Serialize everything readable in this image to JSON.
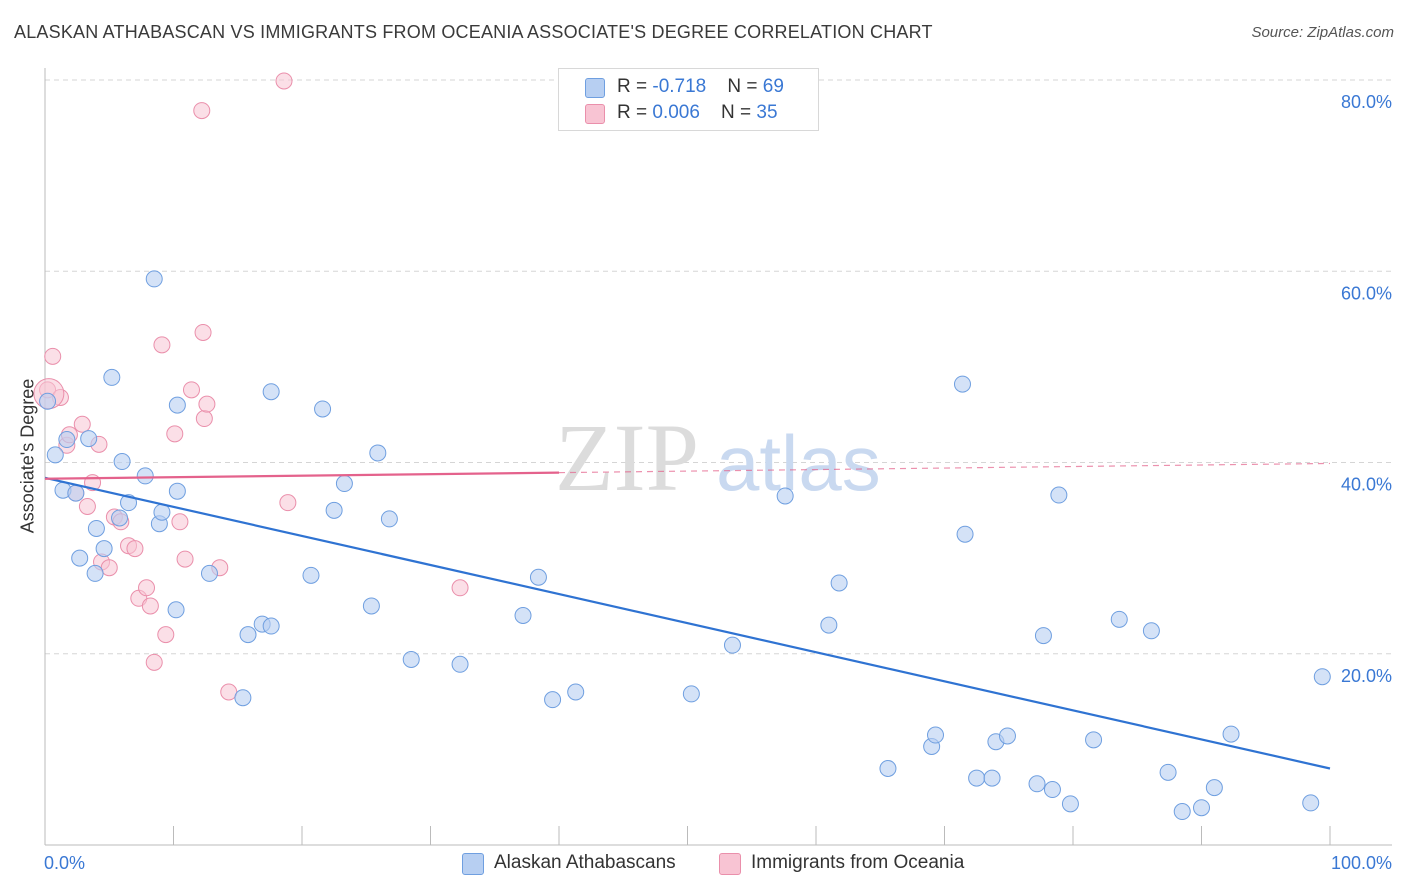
{
  "header": {
    "title": "ALASKAN ATHABASCAN VS IMMIGRANTS FROM OCEANIA ASSOCIATE'S DEGREE CORRELATION CHART",
    "source": "Source: ZipAtlas.com"
  },
  "watermark": {
    "zip": "ZIP",
    "atlas": "atlas"
  },
  "legend_top": {
    "rows": [
      {
        "r_label": "R = ",
        "r_value": "-0.718",
        "n_label": "N = ",
        "n_value": "69"
      },
      {
        "r_label": "R = ",
        "r_value": "0.006",
        "n_label": "N = ",
        "n_value": "35"
      }
    ]
  },
  "legend_bottom": {
    "series0": "Alaskan Athabascans",
    "series1": "Immigrants from Oceania"
  },
  "colors": {
    "blue_fill": "#b7cff2",
    "blue_stroke": "#6f9fe0",
    "blue_line": "#2f73d2",
    "pink_fill": "#f8c4d3",
    "pink_stroke": "#ea8fab",
    "pink_line": "#e4628c",
    "tick_text": "#3a78d4",
    "grid": "#d5d5d5"
  },
  "chart_data": {
    "type": "scatter",
    "title": "ALASKAN ATHABASCAN VS IMMIGRANTS FROM OCEANIA ASSOCIATE'S DEGREE CORRELATION CHART",
    "xlabel": "",
    "ylabel": "Associate's Degree",
    "xlim": [
      0,
      100
    ],
    "ylim": [
      0,
      80
    ],
    "x_tick_labels": [
      "0.0%",
      "100.0%"
    ],
    "y_ticks": [
      20,
      40,
      60,
      80
    ],
    "y_tick_labels": [
      "20.0%",
      "40.0%",
      "60.0%",
      "80.0%"
    ],
    "grid": true,
    "legend_position": "top-center",
    "series": [
      {
        "name": "Alaskan Athabascans",
        "R": -0.718,
        "N": 69,
        "trend": {
          "x": [
            0,
            100
          ],
          "y": [
            38.4,
            8.0
          ],
          "style": "solid"
        },
        "points": [
          [
            0.2,
            46.4
          ],
          [
            0.8,
            40.8
          ],
          [
            1.4,
            37.1
          ],
          [
            1.7,
            42.4
          ],
          [
            2.4,
            36.8
          ],
          [
            2.7,
            30.0
          ],
          [
            3.4,
            42.5
          ],
          [
            3.9,
            28.4
          ],
          [
            4.0,
            33.1
          ],
          [
            4.6,
            31.0
          ],
          [
            5.2,
            48.9
          ],
          [
            5.8,
            34.2
          ],
          [
            6.0,
            40.1
          ],
          [
            6.5,
            35.8
          ],
          [
            7.8,
            38.6
          ],
          [
            8.5,
            59.2
          ],
          [
            8.9,
            33.6
          ],
          [
            9.1,
            34.8
          ],
          [
            10.2,
            24.6
          ],
          [
            10.3,
            37.0
          ],
          [
            10.3,
            46.0
          ],
          [
            12.8,
            28.4
          ],
          [
            15.4,
            15.4
          ],
          [
            15.8,
            22.0
          ],
          [
            16.9,
            23.1
          ],
          [
            17.6,
            22.9
          ],
          [
            17.6,
            47.4
          ],
          [
            20.7,
            28.2
          ],
          [
            21.6,
            45.6
          ],
          [
            22.5,
            35.0
          ],
          [
            23.3,
            37.8
          ],
          [
            25.4,
            25.0
          ],
          [
            25.9,
            41.0
          ],
          [
            26.8,
            34.1
          ],
          [
            28.5,
            19.4
          ],
          [
            32.3,
            18.9
          ],
          [
            37.2,
            24.0
          ],
          [
            38.4,
            28.0
          ],
          [
            39.5,
            15.2
          ],
          [
            41.3,
            16.0
          ],
          [
            50.3,
            15.8
          ],
          [
            53.5,
            20.9
          ],
          [
            57.6,
            36.5
          ],
          [
            61.0,
            23.0
          ],
          [
            61.8,
            27.4
          ],
          [
            65.6,
            8.0
          ],
          [
            69.0,
            10.3
          ],
          [
            69.3,
            11.5
          ],
          [
            71.4,
            48.2
          ],
          [
            71.6,
            32.5
          ],
          [
            72.5,
            7.0
          ],
          [
            73.7,
            7.0
          ],
          [
            74.0,
            10.8
          ],
          [
            74.9,
            11.4
          ],
          [
            77.2,
            6.4
          ],
          [
            77.7,
            21.9
          ],
          [
            78.4,
            5.8
          ],
          [
            78.9,
            36.6
          ],
          [
            79.8,
            4.3
          ],
          [
            81.6,
            11.0
          ],
          [
            83.6,
            23.6
          ],
          [
            86.1,
            22.4
          ],
          [
            87.4,
            7.6
          ],
          [
            88.5,
            3.5
          ],
          [
            90.0,
            3.9
          ],
          [
            91.0,
            6.0
          ],
          [
            92.3,
            11.6
          ],
          [
            98.5,
            4.4
          ],
          [
            99.4,
            17.6
          ]
        ]
      },
      {
        "name": "Immigrants from Oceania",
        "R": 0.006,
        "N": 35,
        "trend": {
          "x": [
            0,
            100
          ],
          "y": [
            38.3,
            39.9
          ],
          "solid_until_x": 40,
          "style": "solid-then-dashed"
        },
        "points": [
          [
            0.2,
            47.6
          ],
          [
            0.6,
            51.1
          ],
          [
            1.2,
            46.8
          ],
          [
            1.7,
            41.8
          ],
          [
            1.9,
            42.9
          ],
          [
            2.4,
            36.8
          ],
          [
            2.9,
            44.0
          ],
          [
            3.3,
            35.4
          ],
          [
            3.7,
            37.9
          ],
          [
            4.2,
            41.9
          ],
          [
            4.4,
            29.6
          ],
          [
            5.0,
            29.0
          ],
          [
            5.4,
            34.3
          ],
          [
            5.9,
            33.8
          ],
          [
            6.5,
            31.3
          ],
          [
            7.0,
            31.0
          ],
          [
            7.3,
            25.8
          ],
          [
            7.9,
            26.9
          ],
          [
            8.2,
            25.0
          ],
          [
            8.5,
            19.1
          ],
          [
            9.1,
            52.3
          ],
          [
            9.4,
            22.0
          ],
          [
            10.1,
            43.0
          ],
          [
            10.5,
            33.8
          ],
          [
            10.9,
            29.9
          ],
          [
            11.4,
            47.6
          ],
          [
            12.4,
            44.6
          ],
          [
            12.6,
            46.1
          ],
          [
            13.6,
            29.0
          ],
          [
            14.3,
            16.0
          ],
          [
            12.3,
            53.6
          ],
          [
            12.2,
            76.8
          ],
          [
            18.6,
            79.9
          ],
          [
            18.9,
            35.8
          ],
          [
            32.3,
            26.9
          ]
        ]
      }
    ]
  }
}
